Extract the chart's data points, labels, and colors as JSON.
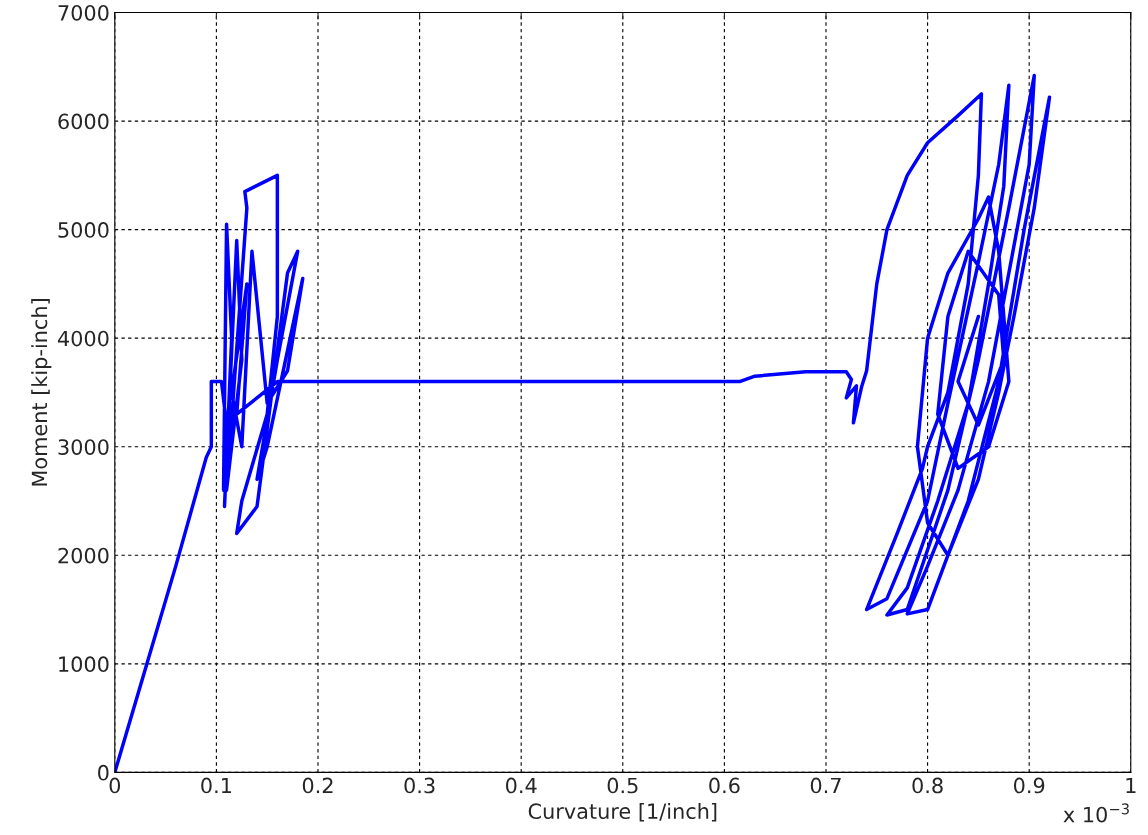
{
  "chart_data": {
    "type": "line",
    "xlabel": "Curvature [1/inch]",
    "ylabel": "Moment [kip-inch]",
    "annotations": [
      "x 10$^{−3}$"
    ],
    "xlim": [
      0,
      1
    ],
    "xticks": [
      0,
      0.1,
      0.2,
      0.3,
      0.4,
      0.5,
      0.6,
      0.7,
      0.8,
      0.9,
      1
    ],
    "ylim": [
      0,
      7000
    ],
    "yticks": [
      0,
      1000,
      2000,
      3000,
      4000,
      5000,
      6000,
      7000
    ],
    "grid": true,
    "legend": false,
    "line_style": "solid",
    "marker": "none",
    "series": [
      {
        "color": "#0000ff",
        "x": [
          0,
          0.03,
          0.06,
          0.09,
          0.095,
          0.095,
          0.105,
          0.11,
          0.107,
          0.11,
          0.115,
          0.108,
          0.12,
          0.125,
          0.11,
          0.13,
          0.128,
          0.16,
          0.16,
          0.15,
          0.125,
          0.12,
          0.14,
          0.17,
          0.18,
          0.16,
          0.14,
          0.15,
          0.185,
          0.17,
          0.15,
          0.135,
          0.125,
          0.115,
          0.13,
          0.12,
          0.16,
          0.3,
          0.5,
          0.615,
          0.63,
          0.68,
          0.72,
          0.725,
          0.72,
          0.73,
          0.727,
          0.735,
          0.74,
          0.745,
          0.75,
          0.76,
          0.78,
          0.8,
          0.83,
          0.853,
          0.85,
          0.84,
          0.82,
          0.8,
          0.795,
          0.77,
          0.74,
          0.76,
          0.8,
          0.82,
          0.85,
          0.87,
          0.88,
          0.875,
          0.86,
          0.84,
          0.81,
          0.78,
          0.76,
          0.78,
          0.82,
          0.85,
          0.88,
          0.905,
          0.9,
          0.88,
          0.86,
          0.83,
          0.8,
          0.78,
          0.8,
          0.84,
          0.87,
          0.895,
          0.92,
          0.905,
          0.885,
          0.87,
          0.85,
          0.82,
          0.8,
          0.79,
          0.8,
          0.82,
          0.85,
          0.86,
          0.87,
          0.88,
          0.86,
          0.83,
          0.81,
          0.82,
          0.84,
          0.87,
          0.875,
          0.85,
          0.83,
          0.85
        ],
        "values": [
          0,
          950,
          1900,
          2900,
          3000,
          3600,
          3600,
          3200,
          2600,
          5050,
          4000,
          2450,
          4900,
          3800,
          2600,
          5200,
          5350,
          5500,
          4200,
          3300,
          2500,
          2200,
          2450,
          4600,
          4800,
          3800,
          2700,
          3000,
          4550,
          3700,
          3400,
          4800,
          3000,
          3500,
          4500,
          3300,
          3600,
          3600,
          3600,
          3600,
          3650,
          3690,
          3690,
          3620,
          3450,
          3560,
          3220,
          3550,
          3700,
          4100,
          4500,
          5000,
          5500,
          5800,
          6050,
          6250,
          5500,
          4500,
          3500,
          3000,
          2800,
          2200,
          1500,
          1600,
          2500,
          3400,
          4700,
          5600,
          6330,
          5400,
          4500,
          3400,
          2500,
          1700,
          1450,
          1500,
          2600,
          3800,
          5200,
          6420,
          5600,
          4600,
          3600,
          2600,
          1900,
          1460,
          1500,
          2500,
          3600,
          5000,
          6220,
          5200,
          4200,
          3500,
          2700,
          2000,
          2300,
          3000,
          4000,
          4600,
          5100,
          5300,
          4800,
          3600,
          3000,
          2800,
          3300,
          4200,
          4800,
          4400,
          3800,
          3200,
          3600,
          4200
        ]
      }
    ]
  }
}
